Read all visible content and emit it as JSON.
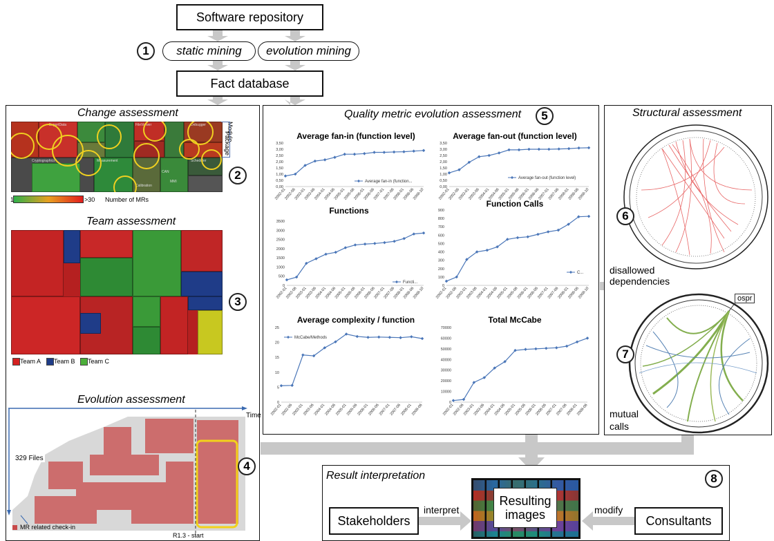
{
  "pipeline": {
    "repository": "Software repository",
    "step1_number": "1",
    "static_mining": "static mining",
    "evolution_mining": "evolution mining",
    "fact_database": "Fact database"
  },
  "change_panel": {
    "title": "Change assessment",
    "number": "2",
    "package_label": "Package",
    "module_label": "Module",
    "block_labels": [
      "ExportData",
      "Cryptographics",
      "Measurement",
      "Calibration",
      "CAN",
      "MMI",
      "FileViewer",
      "Scheduler",
      "Debugger"
    ],
    "legend_min": "1",
    "legend_max": ">30",
    "legend_label": "Number of MRs",
    "colors": {
      "low": "#2fb04a",
      "mid": "#e8a020",
      "high": "#e21d1d"
    }
  },
  "team_panel": {
    "title": "Team assessment",
    "number": "3",
    "legend": [
      {
        "label": "Team A",
        "color": "#d42020"
      },
      {
        "label": "Team B",
        "color": "#1f3c88"
      },
      {
        "label": "Team C",
        "color": "#4caf3a"
      }
    ]
  },
  "evolution_panel": {
    "title": "Evolution assessment",
    "number": "4",
    "time_label": "Time",
    "files_label": "329 Files",
    "checkin_label": "MR related check-in",
    "release_label": "R1.3 - start",
    "colors": {
      "checkin": "#c84a4a",
      "highlight": "#f2d21b"
    }
  },
  "quality_panel": {
    "title": "Quality metric evolution assessment",
    "number": "5",
    "line_color": "#4a76b8"
  },
  "chart_data": [
    {
      "type": "line",
      "title": "Average fan-in (function level)",
      "x": [
        "2002-01",
        "2002-06",
        "2003-01",
        "2003-06",
        "2004-01",
        "2004-06",
        "2005-01",
        "2005-06",
        "2006-01",
        "2006-06",
        "2007-01",
        "2007-06",
        "2008-01",
        "2008-06",
        "2008-10"
      ],
      "series": [
        {
          "name": "Average fan-in (function...",
          "values": [
            0.85,
            1.0,
            1.7,
            2.05,
            2.15,
            2.35,
            2.6,
            2.6,
            2.65,
            2.75,
            2.75,
            2.78,
            2.8,
            2.85,
            2.9
          ]
        }
      ],
      "ylim": [
        0,
        3.5
      ],
      "yticks": [
        "0,00",
        "0,50",
        "1,00",
        "1,50",
        "2,00",
        "2,50",
        "3,00",
        "3,50"
      ],
      "legend": "right"
    },
    {
      "type": "line",
      "title": "Average fan-out (function level)",
      "x": [
        "2002-01",
        "2002-06",
        "2003-01",
        "2003-06",
        "2004-01",
        "2004-06",
        "2005-01",
        "2005-06",
        "2006-01",
        "2006-06",
        "2007-01",
        "2007-06",
        "2008-01",
        "2008-06",
        "2008-10"
      ],
      "series": [
        {
          "name": "Average fan-out (function level)",
          "values": [
            1.1,
            1.35,
            1.95,
            2.4,
            2.5,
            2.7,
            2.95,
            2.95,
            3.0,
            3.0,
            3.0,
            3.02,
            3.05,
            3.1,
            3.12
          ]
        }
      ],
      "ylim": [
        0,
        3.5
      ],
      "yticks": [
        "0,00",
        "0,50",
        "1,00",
        "1,50",
        "2,00",
        "2,50",
        "3,00",
        "3,50"
      ],
      "legend": "right"
    },
    {
      "type": "line",
      "title": "Functions",
      "x": [
        "2002-01",
        "2002-06",
        "2003-01",
        "2003-06",
        "2004-01",
        "2004-06",
        "2005-01",
        "2005-06",
        "2006-01",
        "2006-06",
        "2007-01",
        "2007-06",
        "2008-01",
        "2008-06",
        "2008-10"
      ],
      "series": [
        {
          "name": "Functi...",
          "values": [
            300,
            450,
            1200,
            1450,
            1700,
            1800,
            2050,
            2200,
            2250,
            2280,
            2330,
            2400,
            2550,
            2800,
            2850
          ]
        }
      ],
      "ylim": [
        0,
        3500
      ],
      "yticks": [
        "0",
        "500",
        "1000",
        "1500",
        "2000",
        "2500",
        "3000",
        "3500"
      ],
      "legend": "right"
    },
    {
      "type": "line",
      "title": "Function Calls",
      "x": [
        "2002-01",
        "2002-06",
        "2003-01",
        "2003-06",
        "2004-01",
        "2004-06",
        "2005-01",
        "2005-06",
        "2006-01",
        "2006-06",
        "2007-01",
        "2007-06",
        "2008-01",
        "2008-06",
        "2008-10"
      ],
      "series": [
        {
          "name": "C...",
          "values": [
            50,
            100,
            310,
            400,
            420,
            460,
            550,
            570,
            580,
            610,
            640,
            660,
            730,
            820,
            825
          ]
        }
      ],
      "ylim": [
        0,
        900
      ],
      "yticks": [
        "0",
        "100",
        "200",
        "300",
        "400",
        "500",
        "600",
        "700",
        "800",
        "900"
      ],
      "legend": "right"
    },
    {
      "type": "line",
      "title": "Average complexity / function",
      "x": [
        "2002-01",
        "2002-06",
        "2003-01",
        "2003-06",
        "2004-01",
        "2004-06",
        "2005-01",
        "2005-06",
        "2006-01",
        "2006-06",
        "2007-01",
        "2007-06",
        "2008-01",
        "2008-06"
      ],
      "series": [
        {
          "name": "McCabe/Methods",
          "values": [
            5.5,
            5.6,
            15.8,
            15.5,
            18.2,
            20.2,
            22.8,
            22,
            21.7,
            21.8,
            21.7,
            21.6,
            21.9,
            21.3
          ]
        }
      ],
      "ylim": [
        0,
        25
      ],
      "yticks": [
        "0",
        "5",
        "10",
        "15",
        "20",
        "25"
      ],
      "legend": "top-left"
    },
    {
      "type": "line",
      "title": "Total McCabe",
      "x": [
        "2002-01",
        "2002-06",
        "2003-01",
        "2003-06",
        "2004-01",
        "2004-06",
        "2005-01",
        "2005-06",
        "2006-01",
        "2006-06",
        "2007-01",
        "2007-06",
        "2008-01",
        "2008-06"
      ],
      "series": [
        {
          "name": "McCabe",
          "values": [
            1500,
            2500,
            18500,
            23000,
            32000,
            38000,
            48500,
            49500,
            50000,
            50500,
            51000,
            52500,
            56500,
            60000
          ]
        }
      ],
      "ylim": [
        0,
        70000
      ],
      "yticks": [
        "0",
        "10000",
        "20000",
        "30000",
        "40000",
        "50000",
        "60000",
        "70000"
      ],
      "legend": "top-left"
    }
  ],
  "structural_panel": {
    "title": "Structural assessment",
    "number6": "6",
    "number7": "7",
    "disallowed_label_1": "disallowed",
    "disallowed_label_2": "dependencies",
    "mutual_label_1": "mutual",
    "mutual_label_2": "calls",
    "ospr_label": "ospr",
    "edge_colors": {
      "disallowed": "#e03030",
      "mutual_green": "#6ea030",
      "mutual_blue": "#3a6ea8"
    }
  },
  "result_panel": {
    "title": "Result interpretation",
    "number": "8",
    "stakeholders": "Stakeholders",
    "consultants": "Consultants",
    "resulting_images_1": "Resulting",
    "resulting_images_2": "images",
    "interpret_label": "interpret",
    "modify_label": "modify"
  }
}
